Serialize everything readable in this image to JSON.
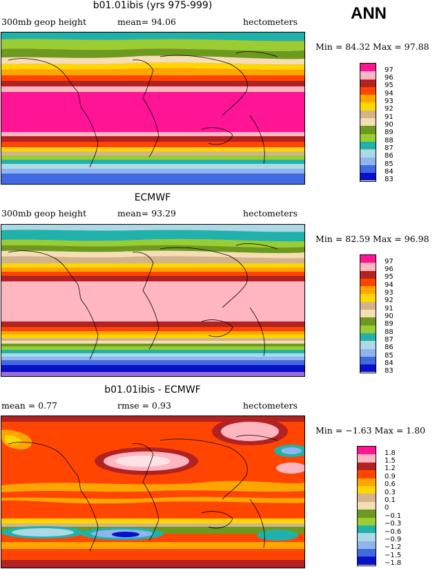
{
  "season": "ANN",
  "colors": {
    "c83": "#9b6fd9",
    "c84": "#0a10c8",
    "c85": "#4169e1",
    "c86": "#8fb4f0",
    "c87": "#add8e6",
    "c88": "#20b2aa",
    "c89": "#9acd32",
    "c90": "#6b9a1f",
    "c91": "#f5deb3",
    "c92": "#d2b48c",
    "c93": "#ffd700",
    "c94": "#ffa500",
    "c95": "#ff4500",
    "c96": "#b22222",
    "c97": "#ffb6c1",
    "cTop": "#ff1493"
  },
  "panels": [
    {
      "title": "b01.01ibis (yrs 975-999)",
      "left_label": "300mb geop height",
      "center_label": "mean=  94.06",
      "right_label": "hectometers",
      "stats": "Min =  84.32 Max =  97.88",
      "legend": [
        "97",
        "96",
        "95",
        "94",
        "93",
        "92",
        "91",
        "90",
        "89",
        "88",
        "87",
        "86",
        "85",
        "84",
        "83"
      ]
    },
    {
      "title": "ECMWF",
      "left_label": "300mb geop height",
      "center_label": "mean=  93.29",
      "right_label": "hectometers",
      "stats": "Min =  82.59 Max =  96.98",
      "legend": [
        "97",
        "96",
        "95",
        "94",
        "93",
        "92",
        "91",
        "90",
        "89",
        "88",
        "87",
        "86",
        "85",
        "84",
        "83"
      ]
    },
    {
      "title": "b01.01ibis - ECMWF",
      "left_label": "mean =   0.77",
      "center_label": "rmse =   0.93",
      "right_label": "hectometers",
      "stats": "Min =  −1.63 Max =   1.80",
      "legend": [
        "1.8",
        "1.5",
        "1.2",
        "0.9",
        "0.6",
        "0.3",
        "0.1",
        "0",
        "−0.1",
        "−0.3",
        "−0.6",
        "−0.9",
        "−1.2",
        "−1.5",
        "−1.8"
      ]
    }
  ]
}
